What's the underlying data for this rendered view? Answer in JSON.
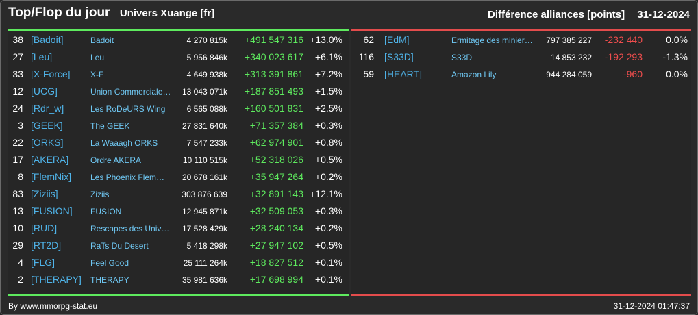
{
  "header": {
    "title": "Top/Flop du jour",
    "subtitle": "Univers Xuange [fr]",
    "right_label": "Différence alliances [points]",
    "date": "31-12-2024"
  },
  "colors": {
    "positive": "#5eea5e",
    "negative": "#ee4d4d",
    "tag": "#4fb3e8",
    "name": "#6fc7f2"
  },
  "top": [
    {
      "rank": "38",
      "tag": "[Badoit]",
      "name": "Badoit",
      "points": "4 270 815k",
      "diff": "+491 547 316",
      "pct": "+13.0%"
    },
    {
      "rank": "27",
      "tag": "[Leu]",
      "name": "Leu",
      "points": "5 956 846k",
      "diff": "+340 023 617",
      "pct": "+6.1%"
    },
    {
      "rank": "33",
      "tag": "[X-Force]",
      "name": "X-F",
      "points": "4 649 938k",
      "diff": "+313 391 861",
      "pct": "+7.2%"
    },
    {
      "rank": "12",
      "tag": "[UCG]",
      "name": "Union Commerciale…",
      "points": "13 043 071k",
      "diff": "+187 851 493",
      "pct": "+1.5%"
    },
    {
      "rank": "24",
      "tag": "[Rdr_w]",
      "name": "Les RoDeURS Wing",
      "points": "6 565 088k",
      "diff": "+160 501 831",
      "pct": "+2.5%"
    },
    {
      "rank": "3",
      "tag": "[GEEK]",
      "name": "The GEEK",
      "points": "27 831 640k",
      "diff": "+71 357 384",
      "pct": "+0.3%"
    },
    {
      "rank": "22",
      "tag": "[ORKS]",
      "name": "La Waaagh ORKS",
      "points": "7 547 233k",
      "diff": "+62 974 901",
      "pct": "+0.8%"
    },
    {
      "rank": "17",
      "tag": "[AKERA]",
      "name": "Ordre AKERA",
      "points": "10 110 515k",
      "diff": "+52 318 026",
      "pct": "+0.5%"
    },
    {
      "rank": "8",
      "tag": "[FlemNix]",
      "name": "Les Phoenix Flem…",
      "points": "20 678 161k",
      "diff": "+35 947 264",
      "pct": "+0.2%"
    },
    {
      "rank": "83",
      "tag": "[Ziziis]",
      "name": "Ziziis",
      "points": "303 876 639",
      "diff": "+32 891 143",
      "pct": "+12.1%"
    },
    {
      "rank": "13",
      "tag": "[FUSION]",
      "name": "FUSION",
      "points": "12 945 871k",
      "diff": "+32 509 053",
      "pct": "+0.3%"
    },
    {
      "rank": "10",
      "tag": "[RUD]",
      "name": "Rescapes des Univ…",
      "points": "17 528 429k",
      "diff": "+28 240 134",
      "pct": "+0.2%"
    },
    {
      "rank": "29",
      "tag": "[RT2D]",
      "name": "RaTs Du Desert",
      "points": "5 418 298k",
      "diff": "+27 947 102",
      "pct": "+0.5%"
    },
    {
      "rank": "4",
      "tag": "[FLG]",
      "name": "Feel Good",
      "points": "25 111 264k",
      "diff": "+18 827 512",
      "pct": "+0.1%"
    },
    {
      "rank": "2",
      "tag": "[THERAPY]",
      "name": "THERAPY",
      "points": "35 981 636k",
      "diff": "+17 698 994",
      "pct": "+0.1%"
    }
  ],
  "flop": [
    {
      "rank": "62",
      "tag": "[EdM]",
      "name": "Ermitage des minier…",
      "points": "797 385 227",
      "diff": "-232 440",
      "pct": "0.0%"
    },
    {
      "rank": "116",
      "tag": "[S33D]",
      "name": "S33D",
      "points": "14 853 232",
      "diff": "-192 293",
      "pct": "-1.3%"
    },
    {
      "rank": "59",
      "tag": "[HEART]",
      "name": "Amazon Lily",
      "points": "944 284 059",
      "diff": "-960",
      "pct": "0.0%"
    }
  ],
  "footer": {
    "credit": "By www.mmorpg-stat.eu",
    "timestamp": "31-12-2024 01:47:37"
  }
}
